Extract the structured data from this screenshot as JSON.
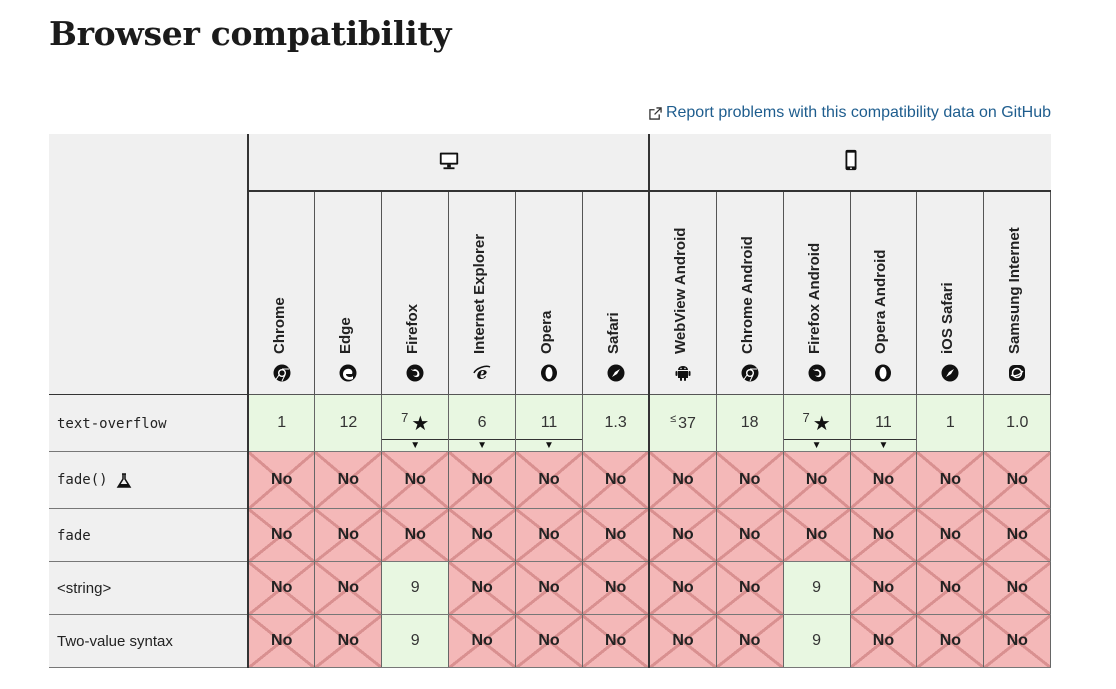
{
  "page": {
    "title": "Browser compatibility",
    "report_link": "Report problems with this compatibility data on GitHub"
  },
  "platforms": [
    {
      "name": "desktop",
      "icon": "desktop-icon"
    },
    {
      "name": "mobile",
      "icon": "mobile-icon"
    }
  ],
  "browsers": [
    {
      "name": "Chrome",
      "icon": "chrome-icon"
    },
    {
      "name": "Edge",
      "icon": "edge-icon"
    },
    {
      "name": "Firefox",
      "icon": "firefox-icon"
    },
    {
      "name": "Internet Explorer",
      "icon": "ie-icon"
    },
    {
      "name": "Opera",
      "icon": "opera-icon"
    },
    {
      "name": "Safari",
      "icon": "safari-icon"
    },
    {
      "name": "WebView Android",
      "icon": "android-icon"
    },
    {
      "name": "Chrome Android",
      "icon": "chrome-icon"
    },
    {
      "name": "Firefox Android",
      "icon": "firefox-icon"
    },
    {
      "name": "Opera Android",
      "icon": "opera-icon"
    },
    {
      "name": "iOS Safari",
      "icon": "safari-icon"
    },
    {
      "name": "Samsung Internet",
      "icon": "samsung-icon"
    }
  ],
  "rows": [
    {
      "feature": "text-overflow",
      "mono": true,
      "cells": [
        {
          "value": "1",
          "status": "yes"
        },
        {
          "value": "12",
          "status": "yes"
        },
        {
          "value": "7",
          "status": "yes",
          "star": true,
          "expander": true
        },
        {
          "value": "6",
          "status": "yes",
          "expander": true
        },
        {
          "value": "11",
          "status": "yes",
          "expander": true
        },
        {
          "value": "1.3",
          "status": "yes"
        },
        {
          "value": "37",
          "status": "yes",
          "prefix": "≤"
        },
        {
          "value": "18",
          "status": "yes"
        },
        {
          "value": "7",
          "status": "yes",
          "star": true,
          "expander": true
        },
        {
          "value": "11",
          "status": "yes",
          "expander": true
        },
        {
          "value": "1",
          "status": "yes"
        },
        {
          "value": "1.0",
          "status": "yes"
        }
      ]
    },
    {
      "feature": "fade()",
      "mono": true,
      "experimental": true,
      "cells": [
        {
          "value": "No",
          "status": "no"
        },
        {
          "value": "No",
          "status": "no"
        },
        {
          "value": "No",
          "status": "no"
        },
        {
          "value": "No",
          "status": "no"
        },
        {
          "value": "No",
          "status": "no"
        },
        {
          "value": "No",
          "status": "no"
        },
        {
          "value": "No",
          "status": "no"
        },
        {
          "value": "No",
          "status": "no"
        },
        {
          "value": "No",
          "status": "no"
        },
        {
          "value": "No",
          "status": "no"
        },
        {
          "value": "No",
          "status": "no"
        },
        {
          "value": "No",
          "status": "no"
        }
      ]
    },
    {
      "feature": "fade",
      "mono": true,
      "cells": [
        {
          "value": "No",
          "status": "no"
        },
        {
          "value": "No",
          "status": "no"
        },
        {
          "value": "No",
          "status": "no"
        },
        {
          "value": "No",
          "status": "no"
        },
        {
          "value": "No",
          "status": "no"
        },
        {
          "value": "No",
          "status": "no"
        },
        {
          "value": "No",
          "status": "no"
        },
        {
          "value": "No",
          "status": "no"
        },
        {
          "value": "No",
          "status": "no"
        },
        {
          "value": "No",
          "status": "no"
        },
        {
          "value": "No",
          "status": "no"
        },
        {
          "value": "No",
          "status": "no"
        }
      ]
    },
    {
      "feature": "<string>",
      "mono": false,
      "cells": [
        {
          "value": "No",
          "status": "no"
        },
        {
          "value": "No",
          "status": "no"
        },
        {
          "value": "9",
          "status": "yes"
        },
        {
          "value": "No",
          "status": "no"
        },
        {
          "value": "No",
          "status": "no"
        },
        {
          "value": "No",
          "status": "no"
        },
        {
          "value": "No",
          "status": "no"
        },
        {
          "value": "No",
          "status": "no"
        },
        {
          "value": "9",
          "status": "yes"
        },
        {
          "value": "No",
          "status": "no"
        },
        {
          "value": "No",
          "status": "no"
        },
        {
          "value": "No",
          "status": "no"
        }
      ]
    },
    {
      "feature": "Two-value syntax",
      "mono": false,
      "cells": [
        {
          "value": "No",
          "status": "no"
        },
        {
          "value": "No",
          "status": "no"
        },
        {
          "value": "9",
          "status": "yes"
        },
        {
          "value": "No",
          "status": "no"
        },
        {
          "value": "No",
          "status": "no"
        },
        {
          "value": "No",
          "status": "no"
        },
        {
          "value": "No",
          "status": "no"
        },
        {
          "value": "No",
          "status": "no"
        },
        {
          "value": "9",
          "status": "yes"
        },
        {
          "value": "No",
          "status": "no"
        },
        {
          "value": "No",
          "status": "no"
        },
        {
          "value": "No",
          "status": "no"
        }
      ]
    }
  ],
  "colors": {
    "yes_bg": "#e8f7e1",
    "no_bg": "#f4b8b8",
    "link": "#1e5d8e"
  }
}
